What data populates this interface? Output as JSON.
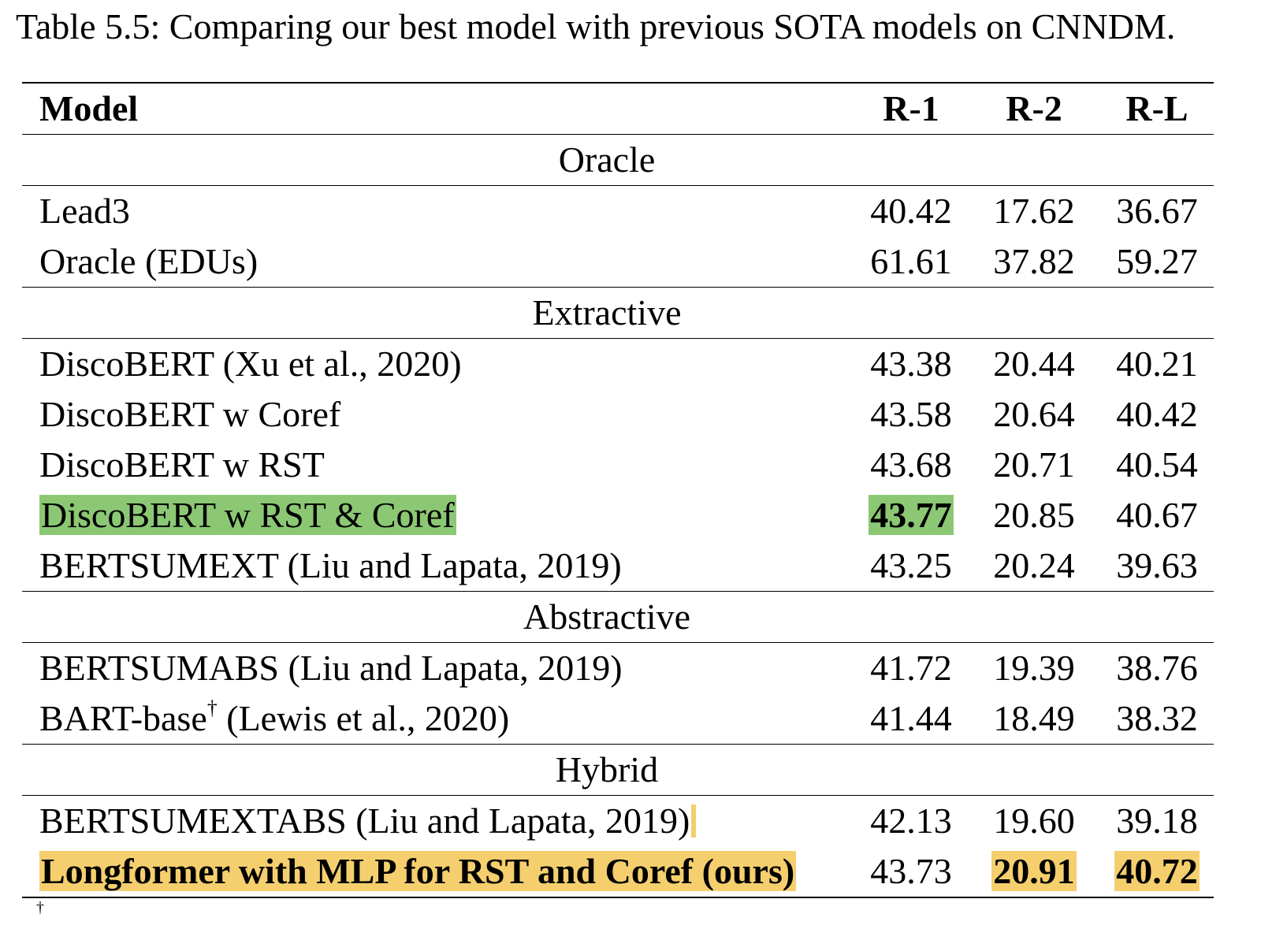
{
  "caption": "Table 5.5: Comparing our best model with previous SOTA models on CNNDM.",
  "header": {
    "model": "Model",
    "r1": "R-1",
    "r2": "R-2",
    "rl": "R-L"
  },
  "sections": [
    {
      "label": "Oracle",
      "rows": [
        {
          "model": "Lead3",
          "r1": "40.42",
          "r2": "17.62",
          "rl": "36.67"
        },
        {
          "model": "Oracle (EDUs)",
          "r1": "61.61",
          "r2": "37.82",
          "rl": "59.27"
        }
      ]
    },
    {
      "label": "Extractive",
      "rows": [
        {
          "model": "DiscoBERT (Xu et al., 2020)",
          "r1": "43.38",
          "r2": "20.44",
          "rl": "40.21"
        },
        {
          "model": "DiscoBERT w Coref",
          "r1": "43.58",
          "r2": "20.64",
          "rl": "40.42"
        },
        {
          "model": "DiscoBERT w RST",
          "r1": "43.68",
          "r2": "20.71",
          "rl": "40.54"
        },
        {
          "model": "DiscoBERT w RST & Coref",
          "r1": "43.77",
          "r2": "20.85",
          "rl": "40.67"
        },
        {
          "model": "BERTSUMEXT (Liu and Lapata, 2019)",
          "r1": "43.25",
          "r2": "20.24",
          "rl": "39.63"
        }
      ]
    },
    {
      "label": "Abstractive",
      "rows": [
        {
          "model": "BERTSUMABS (Liu and Lapata, 2019)",
          "r1": "41.72",
          "r2": "19.39",
          "rl": "38.76"
        },
        {
          "model": "BART-base",
          "model_sup": "†",
          "model_suffix": " (Lewis et al., 2020)",
          "r1": "41.44",
          "r2": "18.49",
          "rl": "38.32"
        }
      ]
    },
    {
      "label": "Hybrid",
      "rows": [
        {
          "model": "BERTSUMEXTABS (Liu and Lapata, 2019)",
          "r1": "42.13",
          "r2": "19.60",
          "rl": "39.18"
        },
        {
          "model": "Longformer with MLP for RST and Coref (ours)",
          "r1": "43.73",
          "r2": "20.91",
          "rl": "40.72"
        }
      ]
    }
  ],
  "highlight_colors": {
    "green": "#8cc874",
    "yellow": "#f5cf6e"
  },
  "footnote_mark": "†"
}
